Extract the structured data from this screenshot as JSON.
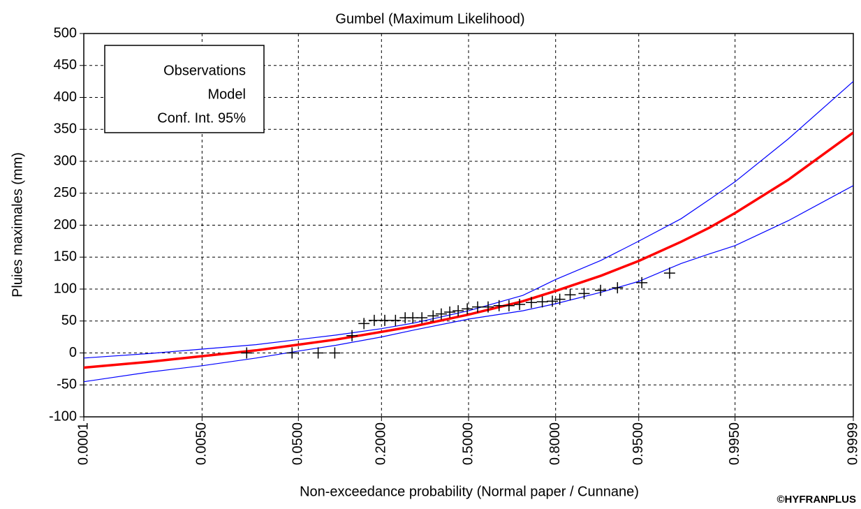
{
  "chart_data": {
    "type": "probability-plot",
    "title": "Gumbel (Maximum Likelihood)",
    "x_label": "Non-exceedance probability (Normal paper / Cunnane)",
    "y_label": "Pluies maximales (mm)",
    "credit": "©HYFRANPLUS",
    "xscale": "probit",
    "xlim": [
      0.0001,
      0.9999
    ],
    "xticks": [
      {
        "value": 0.0001,
        "label": "0.0001"
      },
      {
        "value": 0.005,
        "label": "0.0050"
      },
      {
        "value": 0.05,
        "label": "0.0500"
      },
      {
        "value": 0.2,
        "label": "0.2000"
      },
      {
        "value": 0.5,
        "label": "0.5000"
      },
      {
        "value": 0.8,
        "label": "0.8000"
      },
      {
        "value": 0.95,
        "label": "0.9500"
      },
      {
        "value": 0.995,
        "label": "0.9950"
      },
      {
        "value": 0.9999,
        "label": "0.9999"
      }
    ],
    "ylim": [
      -100,
      500
    ],
    "yticks": [
      -100,
      -50,
      0,
      50,
      100,
      150,
      200,
      250,
      300,
      350,
      400,
      450,
      500
    ],
    "grid": true,
    "legend": "upper left",
    "x": [
      0.0001,
      0.001,
      0.005,
      0.02,
      0.05,
      0.1,
      0.2,
      0.3,
      0.5,
      0.7,
      0.8,
      0.9,
      0.95,
      0.98,
      0.99,
      0.995,
      0.999,
      0.9999
    ],
    "series": [
      {
        "name": "Observations",
        "color": "#000000",
        "x": [
          0.016,
          0.044,
          0.073,
          0.098,
          0.13,
          0.156,
          0.181,
          0.209,
          0.24,
          0.27,
          0.295,
          0.326,
          0.366,
          0.396,
          0.428,
          0.46,
          0.495,
          0.535,
          0.575,
          0.616,
          0.652,
          0.689,
          0.728,
          0.762,
          0.791,
          0.811,
          0.837,
          0.868,
          0.899,
          0.925,
          0.953,
          0.974
        ],
        "values": [
          0,
          0,
          0,
          0,
          27,
          46,
          51,
          51,
          51,
          55,
          55,
          55,
          58,
          61,
          64,
          66,
          69,
          72,
          72,
          74,
          74,
          76,
          79,
          80,
          81,
          84,
          91,
          93,
          98,
          102,
          110,
          125
        ]
      },
      {
        "name": "Model",
        "color": "#ff0000",
        "values": [
          -23,
          -14,
          -5,
          4,
          13,
          21,
          33,
          42,
          60,
          81,
          97,
          121,
          144,
          174,
          196,
          219,
          271,
          345
        ]
      },
      {
        "name": "Conf. Int. 95%",
        "color": "#0000ff",
        "upper": [
          -8,
          -1,
          6,
          13,
          21,
          28,
          38,
          47,
          66,
          90,
          115,
          145,
          175,
          210,
          240,
          268,
          335,
          425
        ],
        "lower": [
          -45,
          -30,
          -20,
          -8,
          3,
          12,
          25,
          36,
          53,
          66,
          77,
          95,
          112,
          140,
          155,
          168,
          207,
          262
        ]
      }
    ]
  }
}
